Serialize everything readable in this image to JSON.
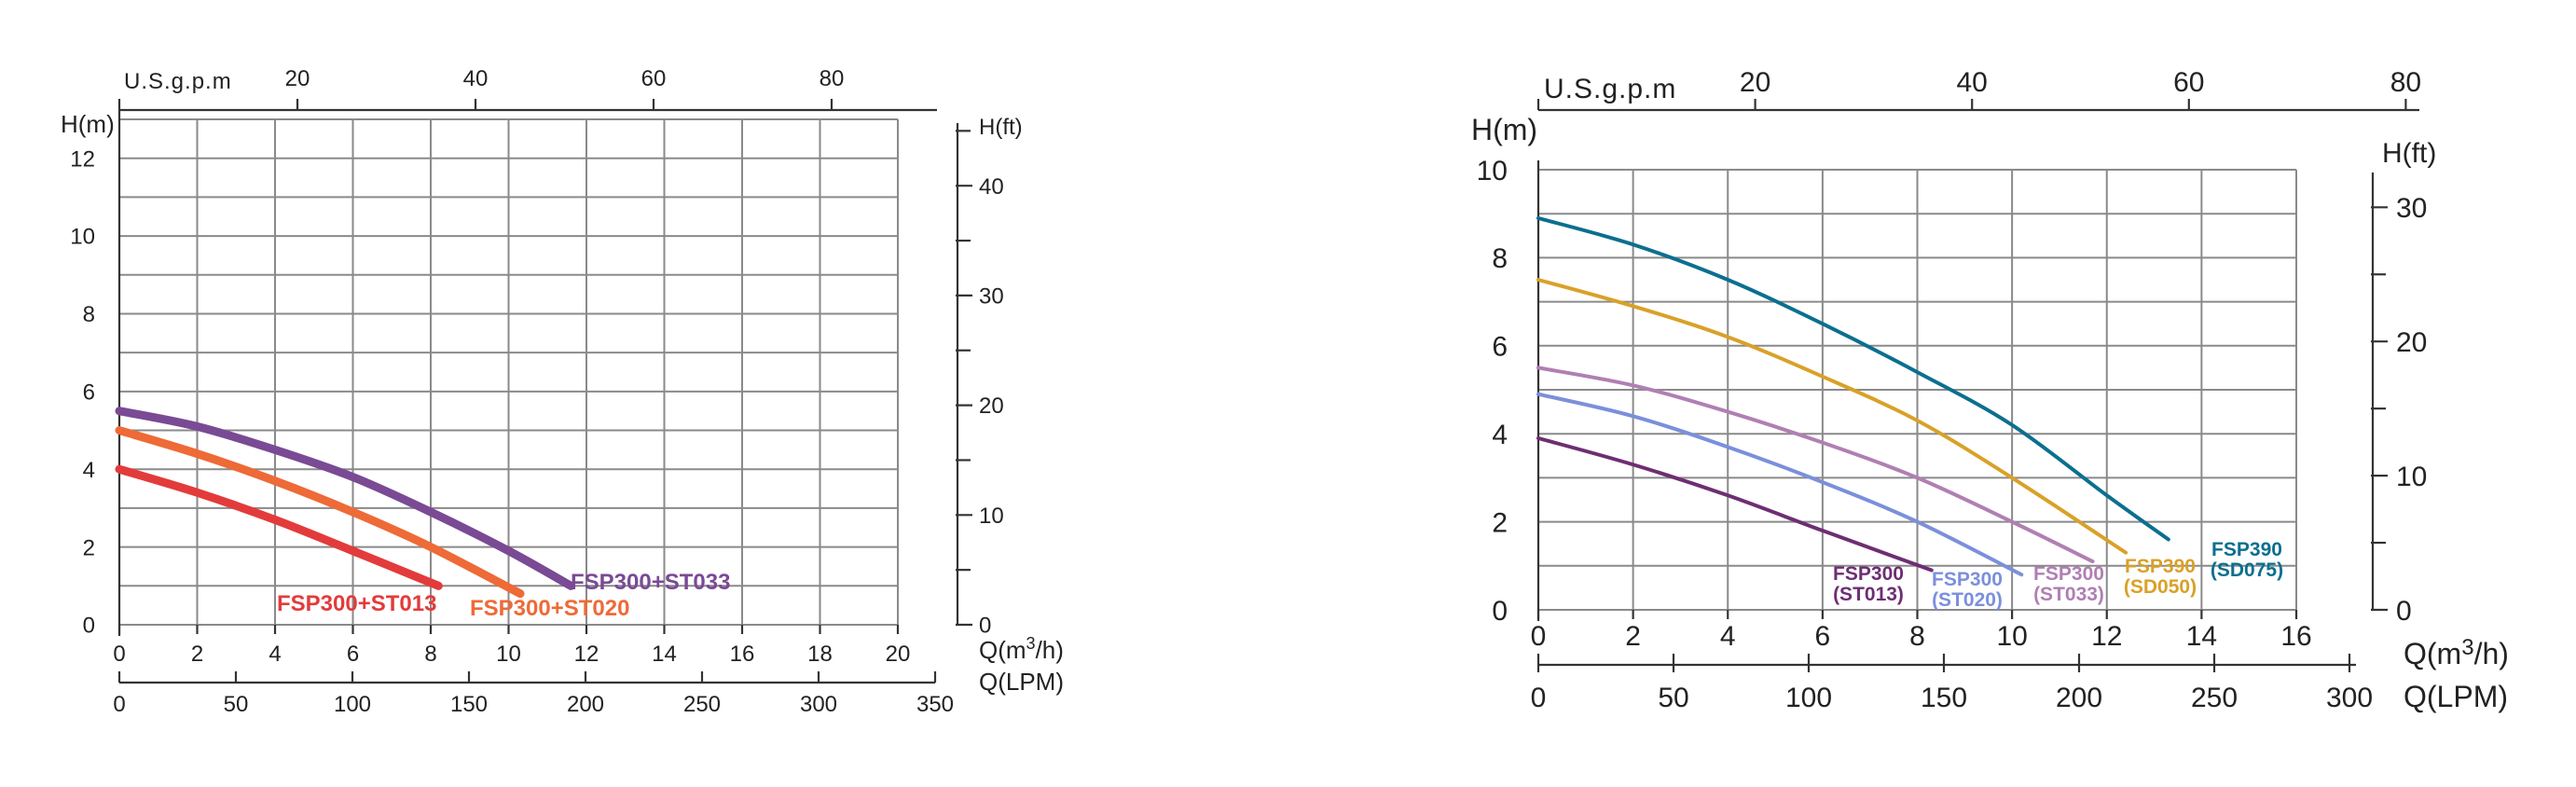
{
  "chart_data": [
    {
      "type": "line",
      "title": "",
      "xlabel": "Q(m³/h)",
      "ylabel": "H(m)",
      "xlim": [
        0,
        20
      ],
      "ylim": [
        0,
        13
      ],
      "x_ticks": [
        0,
        2,
        4,
        6,
        8,
        10,
        12,
        14,
        16,
        18,
        20
      ],
      "y_ticks": [
        0,
        2,
        4,
        6,
        8,
        10,
        12
      ],
      "grid": true,
      "top_axis": {
        "label": "U.S.g.p.m",
        "ticks": [
          20,
          40,
          60,
          80
        ]
      },
      "right_axis": {
        "label": "H(ft)",
        "ticks": [
          0,
          10,
          20,
          30,
          40
        ]
      },
      "bottom_axis2": {
        "label": "Q(LPM)",
        "ticks": [
          0,
          50,
          100,
          150,
          200,
          250,
          300,
          350
        ]
      },
      "series": [
        {
          "name": "FSP300+ST013",
          "color": "#e33b3b",
          "x": [
            0,
            2,
            4,
            6,
            8.2
          ],
          "y": [
            4.0,
            3.4,
            2.7,
            1.9,
            1.0
          ]
        },
        {
          "name": "FSP300+ST020",
          "color": "#ee6a37",
          "x": [
            0,
            2,
            4,
            6,
            8,
            10.3
          ],
          "y": [
            5.0,
            4.4,
            3.7,
            2.9,
            2.0,
            0.8
          ]
        },
        {
          "name": "FSP300+ST033",
          "color": "#7a4a95",
          "x": [
            0,
            2,
            4,
            6,
            8,
            10,
            11.6
          ],
          "y": [
            5.5,
            5.1,
            4.5,
            3.8,
            2.9,
            1.9,
            1.0
          ]
        }
      ]
    },
    {
      "type": "line",
      "title": "",
      "xlabel": "Q(m³/h)",
      "ylabel": "H(m)",
      "xlim": [
        0,
        16
      ],
      "ylim": [
        0,
        10
      ],
      "x_ticks": [
        0,
        2,
        4,
        6,
        8,
        10,
        12,
        14,
        16
      ],
      "y_ticks": [
        0,
        2,
        4,
        6,
        8,
        10
      ],
      "grid": true,
      "top_axis": {
        "label": "U.S.g.p.m",
        "ticks": [
          20,
          40,
          60,
          80
        ]
      },
      "right_axis": {
        "label": "H(ft)",
        "ticks": [
          0,
          10,
          20,
          30
        ]
      },
      "bottom_axis2": {
        "label": "Q(LPM)",
        "ticks": [
          0,
          50,
          100,
          150,
          200,
          250,
          300
        ]
      },
      "series": [
        {
          "name": "FSP300 (ST013)",
          "color": "#6e2e73",
          "x": [
            0,
            2,
            4,
            6,
            8.3
          ],
          "y": [
            3.9,
            3.3,
            2.6,
            1.8,
            0.9
          ]
        },
        {
          "name": "FSP300 (ST020)",
          "color": "#7b8fdb",
          "x": [
            0,
            2,
            4,
            6,
            8,
            10.2
          ],
          "y": [
            4.9,
            4.4,
            3.7,
            2.9,
            2.0,
            0.8
          ]
        },
        {
          "name": "FSP300 (ST033)",
          "color": "#b07fb3",
          "x": [
            0,
            2,
            4,
            6,
            8,
            10,
            11.7
          ],
          "y": [
            5.5,
            5.1,
            4.5,
            3.8,
            3.0,
            2.0,
            1.1
          ]
        },
        {
          "name": "FSP390 (SD050)",
          "color": "#d9a128",
          "x": [
            0,
            2,
            4,
            6,
            8,
            10,
            12.4
          ],
          "y": [
            7.5,
            6.9,
            6.2,
            5.3,
            4.3,
            3.0,
            1.3
          ]
        },
        {
          "name": "FSP390 (SD075)",
          "color": "#0b6f8f",
          "x": [
            0,
            2,
            4,
            6,
            8,
            10,
            12,
            13.3
          ],
          "y": [
            8.9,
            8.3,
            7.5,
            6.5,
            5.4,
            4.2,
            2.6,
            1.6
          ]
        }
      ]
    }
  ]
}
